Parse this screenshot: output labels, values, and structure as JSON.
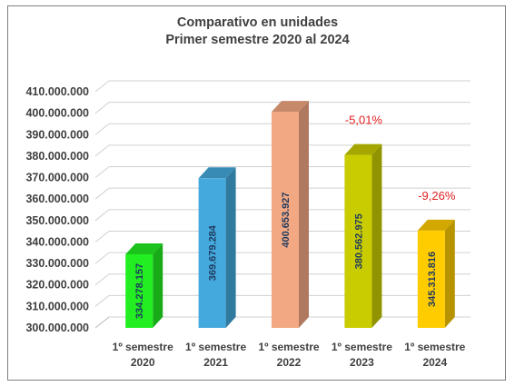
{
  "chart_data": {
    "type": "bar",
    "title": [
      "Comparativo en unidades",
      "Primer semestre 2020 al 2024"
    ],
    "categories": [
      [
        "1º semestre",
        "2020"
      ],
      [
        "1º semestre",
        "2021"
      ],
      [
        "1º semestre",
        "2022"
      ],
      [
        "1º semestre",
        "2023"
      ],
      [
        "1º semestre",
        "2024"
      ]
    ],
    "values": [
      334278157,
      369679284,
      400653927,
      380562975,
      345313816
    ],
    "data_labels": [
      "334.278.157",
      "369.679.284",
      "400.653.927",
      "380.562.975",
      "345.313.816"
    ],
    "colors": [
      "#22ee22",
      "#44aadd",
      "#f2a882",
      "#c9cc00",
      "#ffcc00"
    ],
    "annotations": [
      {
        "index": 3,
        "text": "-5,01%"
      },
      {
        "index": 4,
        "text": "-9,26%"
      }
    ],
    "ylim": [
      300000000,
      410000000
    ],
    "yticks": [
      300000000,
      310000000,
      320000000,
      330000000,
      340000000,
      350000000,
      360000000,
      370000000,
      380000000,
      390000000,
      400000000,
      410000000
    ],
    "ytick_labels": [
      "300.000.000",
      "310.000.000",
      "320.000.000",
      "330.000.000",
      "340.000.000",
      "350.000.000",
      "360.000.000",
      "370.000.000",
      "380.000.000",
      "390.000.000",
      "400.000.000",
      "410.000.000"
    ],
    "grid": true,
    "xlabel": "",
    "ylabel": ""
  }
}
